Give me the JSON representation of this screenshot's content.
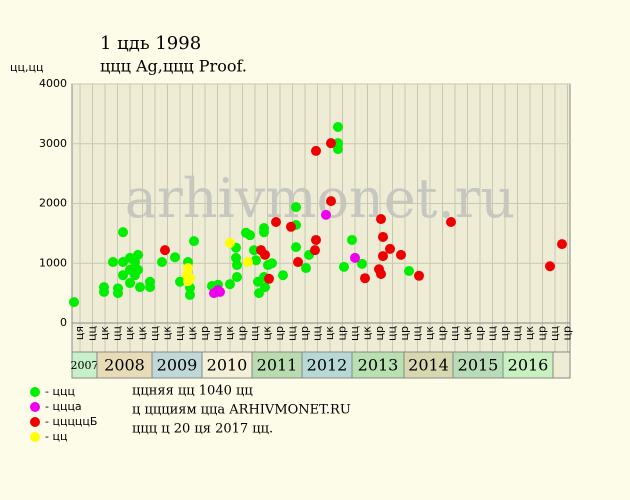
{
  "chart_data": {
    "type": "scatter",
    "title": "1 цдь 1998",
    "subtitle": "ццц Ag,ццц Proof.",
    "y_label": "цц,цц",
    "watermark": "arhivmonet.ru",
    "xlim": [
      2007.5,
      2017.46
    ],
    "ylim": [
      0,
      4000
    ],
    "yticks": [
      0,
      1000,
      2000,
      3000,
      4000
    ],
    "grid": true,
    "xticks": [
      {
        "value": 2007.66,
        "label": "ця"
      },
      {
        "value": 2007.91,
        "label": "цц"
      },
      {
        "value": 2008.16,
        "label": "цк"
      },
      {
        "value": 2008.41,
        "label": "цц"
      },
      {
        "value": 2008.66,
        "label": "цк"
      },
      {
        "value": 2008.91,
        "label": "цк"
      },
      {
        "value": 2009.16,
        "label": "цц"
      },
      {
        "value": 2009.41,
        "label": "цк"
      },
      {
        "value": 2009.66,
        "label": "цц"
      },
      {
        "value": 2009.91,
        "label": "цк"
      },
      {
        "value": 2010.16,
        "label": "цр"
      },
      {
        "value": 2010.41,
        "label": "цц"
      },
      {
        "value": 2010.66,
        "label": "цк"
      },
      {
        "value": 2010.91,
        "label": "цр"
      },
      {
        "value": 2011.16,
        "label": "цц"
      },
      {
        "value": 2011.41,
        "label": "цк"
      },
      {
        "value": 2011.66,
        "label": "цр"
      },
      {
        "value": 2011.91,
        "label": "цц"
      },
      {
        "value": 2012.16,
        "label": "цр"
      },
      {
        "value": 2012.41,
        "label": "цц"
      },
      {
        "value": 2012.66,
        "label": "цк"
      },
      {
        "value": 2012.91,
        "label": "цр"
      },
      {
        "value": 2013.16,
        "label": "цц"
      },
      {
        "value": 2013.41,
        "label": "цк"
      },
      {
        "value": 2013.66,
        "label": "цр"
      },
      {
        "value": 2013.91,
        "label": "цц"
      },
      {
        "value": 2014.16,
        "label": "цр"
      },
      {
        "value": 2014.41,
        "label": "цц"
      },
      {
        "value": 2014.66,
        "label": "цк"
      },
      {
        "value": 2014.91,
        "label": "цр"
      },
      {
        "value": 2015.16,
        "label": "цц"
      },
      {
        "value": 2015.41,
        "label": "цк"
      },
      {
        "value": 2015.66,
        "label": "цр"
      },
      {
        "value": 2015.91,
        "label": "цц"
      },
      {
        "value": 2016.16,
        "label": "цр"
      },
      {
        "value": 2016.41,
        "label": "цц"
      },
      {
        "value": 2016.66,
        "label": "цк"
      },
      {
        "value": 2016.91,
        "label": "цр"
      },
      {
        "value": 2017.16,
        "label": "цц"
      },
      {
        "value": 2017.41,
        "label": "цр"
      }
    ],
    "year_bands": [
      {
        "label": "2007",
        "from": 2007.5,
        "to": 2008,
        "color": "#c8f0c8"
      },
      {
        "label": "2008",
        "from": 2008,
        "to": 2009.1,
        "color": "#e8dcb8"
      },
      {
        "label": "2009",
        "from": 2009.1,
        "to": 2010.1,
        "color": "#c0d8d8"
      },
      {
        "label": "2010",
        "from": 2010.1,
        "to": 2011.1,
        "color": "#f4f0d8"
      },
      {
        "label": "2011",
        "from": 2011.1,
        "to": 2012.1,
        "color": "#b8dcb0"
      },
      {
        "label": "2012",
        "from": 2012.1,
        "to": 2013.1,
        "color": "#b8d8d8"
      },
      {
        "label": "2013",
        "from": 2013.1,
        "to": 2014.14,
        "color": "#b8e0b0"
      },
      {
        "label": "2014",
        "from": 2014.14,
        "to": 2015.12,
        "color": "#d8d8b0"
      },
      {
        "label": "2015",
        "from": 2015.12,
        "to": 2016.12,
        "color": "#b8dcb8"
      },
      {
        "label": "2016",
        "from": 2016.12,
        "to": 2017.12,
        "color": "#c8f0c0"
      }
    ],
    "series": [
      {
        "name": "- ццц",
        "color": "#00ee00",
        "x": [
          2007.54,
          2008.14,
          2008.14,
          2008.32,
          2008.42,
          2008.42,
          2008.52,
          2008.52,
          2008.52,
          2008.66,
          2008.66,
          2008.66,
          2008.76,
          2008.76,
          2008.82,
          2008.82,
          2008.86,
          2009.06,
          2009.06,
          2009.3,
          2009.56,
          2009.66,
          2009.82,
          2009.86,
          2009.86,
          2009.94,
          2010.3,
          2010.42,
          2010.66,
          2010.78,
          2010.78,
          2010.8,
          2010.8,
          2010.98,
          2011.06,
          2011.14,
          2011.18,
          2011.22,
          2011.24,
          2011.34,
          2011.34,
          2011.34,
          2011.36,
          2011.42,
          2011.5,
          2011.72,
          2011.98,
          2011.98,
          2011.98,
          2012.18,
          2012.24,
          2012.82,
          2012.82,
          2012.82,
          2012.94,
          2013.1,
          2013.3,
          2014.24
        ],
        "values": [
          350,
          600,
          520,
          1020,
          580,
          500,
          1520,
          1020,
          800,
          1090,
          890,
          670,
          1020,
          800,
          1140,
          890,
          600,
          690,
          600,
          1020,
          1100,
          690,
          1020,
          470,
          590,
          1370,
          620,
          640,
          650,
          1260,
          1090,
          970,
          770,
          1510,
          1470,
          1220,
          1050,
          690,
          500,
          1520,
          1590,
          770,
          600,
          970,
          1000,
          800,
          1940,
          1640,
          1270,
          920,
          1140,
          3280,
          3010,
          2910,
          940,
          1390,
          990,
          870
        ]
      },
      {
        "name": "- цццa",
        "color": "#ee00ee",
        "x": [
          2010.34,
          2010.42,
          2010.46,
          2012.58,
          2013.16
        ],
        "values": [
          500,
          550,
          520,
          1810,
          1090
        ]
      },
      {
        "name": "- цццццБ",
        "color": "#ee0000",
        "x": [
          2009.36,
          2011.28,
          2011.36,
          2011.44,
          2011.58,
          2011.88,
          2012.02,
          2012.36,
          2012.38,
          2012.38,
          2012.68,
          2012.68,
          2013.36,
          2013.64,
          2013.68,
          2013.68,
          2013.72,
          2013.72,
          2013.86,
          2014.08,
          2014.44,
          2015.08,
          2017.06,
          2017.3
        ],
        "values": [
          1220,
          1220,
          1140,
          740,
          1690,
          1610,
          1020,
          1220,
          2880,
          1390,
          3010,
          2040,
          750,
          900,
          1740,
          820,
          1120,
          1440,
          1240,
          1140,
          790,
          1690,
          950,
          1320
        ]
      },
      {
        "name": "- цц",
        "color": "#ffff00",
        "x": [
          2009.82,
          2009.82,
          2009.86,
          2009.8,
          2010.66,
          2011.02
        ],
        "values": [
          920,
          700,
          750,
          800,
          1340,
          1020
        ]
      }
    ],
    "notes": [
      "ццняя цц 1040 цц",
      "ц ццциям цца ARHIVMONET.RU",
      "ццц ц 20 ця 2017 цц."
    ]
  }
}
